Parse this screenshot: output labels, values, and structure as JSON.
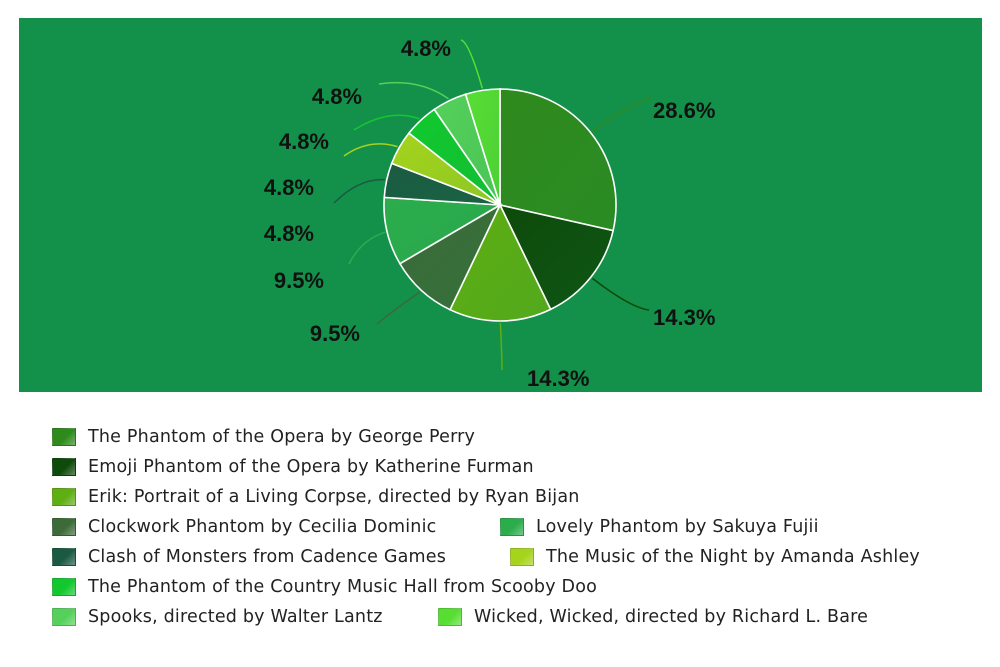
{
  "chart_data": {
    "type": "pie",
    "title": "",
    "slices": [
      {
        "label": "The Phantom of the Opera by George Perry",
        "value": 28.6,
        "display": "28.6%",
        "color": "#2f8a1c"
      },
      {
        "label": "Emoji Phantom of the Opera by Katherine Furman",
        "value": 14.3,
        "display": "14.3%",
        "color": "#0e4a0a"
      },
      {
        "label": "Erik: Portrait of a Living Corpse, directed by Ryan Bijan",
        "value": 14.3,
        "display": "14.3%",
        "color": "#5fae12"
      },
      {
        "label": "Clockwork Phantom by Cecilia Dominic",
        "value": 9.5,
        "display": "9.5%",
        "color": "#3c6a38"
      },
      {
        "label": "Lovely Phantom by Sakuya Fujii",
        "value": 9.5,
        "display": "9.5%",
        "color": "#2cad4c"
      },
      {
        "label": "Clash of Monsters from Cadence Games",
        "value": 4.8,
        "display": "4.8%",
        "color": "#1b5a42"
      },
      {
        "label": "The Music of the Night by Amanda Ashley",
        "value": 4.8,
        "display": "4.8%",
        "color": "#a6d31c"
      },
      {
        "label": "The Phantom of the Country Music Hall from Scooby Doo",
        "value": 4.8,
        "display": "4.8%",
        "color": "#12c82e"
      },
      {
        "label": "Spooks, directed by Walter Lantz",
        "value": 4.8,
        "display": "4.8%",
        "color": "#55d05a"
      },
      {
        "label": "Wicked, Wicked, directed by Richard L. Bare",
        "value": 4.8,
        "display": "4.8%",
        "color": "#58de33"
      }
    ],
    "background_color": "#13914a",
    "legend_position": "bottom"
  }
}
